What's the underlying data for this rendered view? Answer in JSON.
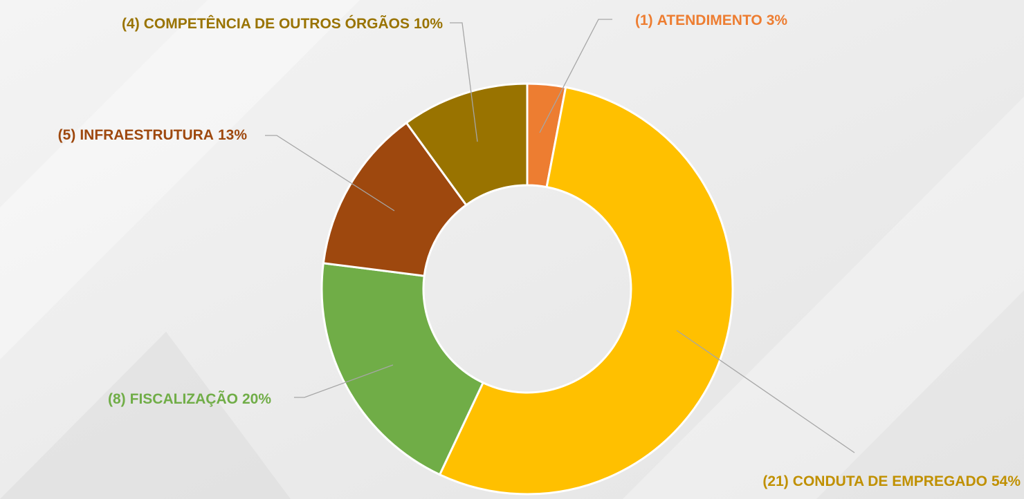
{
  "chart_data": {
    "type": "donut",
    "categories": [
      "ATENDIMENTO",
      "CONDUTA DE EMPREGADO",
      "FISCALIZAÇÃO",
      "INFRAESTRUTURA",
      "COMPETÊNCIA DE OUTROS ÓRGÃOS"
    ],
    "count_labels": [
      "(1)",
      "(21)",
      "(8)",
      "(5)",
      "(4)"
    ],
    "counts": [
      1,
      21,
      8,
      5,
      4
    ],
    "values": [
      3,
      54,
      20,
      13,
      10
    ],
    "value_labels": [
      "3%",
      "54%",
      "20%",
      "13%",
      "10%"
    ],
    "colors": [
      "#ED7D31",
      "#FFC000",
      "#70AD47",
      "#9E480E",
      "#997300"
    ]
  }
}
